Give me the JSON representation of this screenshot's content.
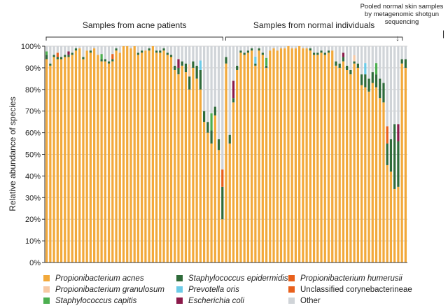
{
  "chart_data": {
    "type": "stacked-bar",
    "ylabel": "Relative abundance of species",
    "yticks": [
      "0%",
      "10%",
      "20%",
      "30%",
      "40%",
      "50%",
      "60%",
      "70%",
      "80%",
      "90%",
      "100%"
    ],
    "ylim": [
      0,
      100
    ],
    "groups": [
      {
        "label": "Samples from acne patients",
        "from": 0,
        "to": 48
      },
      {
        "label": "Samples from normal individuals",
        "from": 49,
        "to": 97
      }
    ],
    "pooled_note": "Pooled normal skin samples by metagenomic shotgun sequencing",
    "pooled_index": 98,
    "pooled_arrow": "↓",
    "extra_mark": "|",
    "species": [
      {
        "name": "Propionibacterium acnes",
        "color": "#f2a93b",
        "italic": true
      },
      {
        "name": "Staphylococcus epidermidis",
        "color": "#2f6b3a",
        "italic": true
      },
      {
        "name": "Propionibacterium humerusii",
        "color": "#e8601c",
        "italic": true
      },
      {
        "name": "Propionibacterium granulosum",
        "color": "#f7c9a4",
        "italic": true
      },
      {
        "name": "Prevotella oris",
        "color": "#6ccbe8",
        "italic": true
      },
      {
        "name": "Unclassified corynebacterineae",
        "color": "#e8601c",
        "italic": false
      },
      {
        "name": "Staphylococcus capitis",
        "color": "#4caf50",
        "italic": true
      },
      {
        "name": "Escherichia coli",
        "color": "#8b1a4a",
        "italic": true
      },
      {
        "name": "Other",
        "color": "#d0d4d8",
        "italic": false
      }
    ],
    "acnes_values": [
      94,
      91,
      95,
      94,
      94,
      95,
      95,
      96,
      98,
      99,
      94,
      98,
      97,
      99,
      96,
      93,
      93,
      92,
      93,
      98,
      97,
      100,
      100,
      99,
      100,
      96,
      97,
      98,
      98,
      100,
      97,
      97,
      98,
      96,
      95,
      89,
      87,
      91,
      88,
      80,
      90,
      85,
      80,
      65,
      60,
      55,
      68,
      52,
      20,
      92,
      55,
      74,
      89,
      97,
      96,
      97,
      98,
      91,
      98,
      96,
      90,
      98,
      99,
      98,
      99,
      99,
      100,
      99,
      99,
      100,
      99,
      99,
      98,
      96,
      96,
      97,
      96,
      97,
      98,
      91,
      90,
      93,
      89,
      87,
      92,
      90,
      82,
      81,
      79,
      83,
      81,
      76,
      74,
      45,
      42,
      34,
      35,
      92,
      90
    ],
    "epi_values": [
      2,
      1,
      1,
      1,
      1,
      1,
      1,
      1,
      1,
      0,
      1,
      0,
      1,
      0,
      0,
      1,
      1,
      1,
      1,
      1,
      0,
      0,
      0,
      0,
      0,
      1,
      1,
      0,
      1,
      0,
      1,
      1,
      1,
      1,
      1,
      2,
      3,
      2,
      4,
      6,
      3,
      6,
      9,
      5,
      5,
      6,
      4,
      5,
      15,
      3,
      4,
      2,
      2,
      1,
      1,
      1,
      1,
      1,
      1,
      1,
      1,
      0,
      0,
      0,
      0,
      0,
      0,
      0,
      0,
      0,
      0,
      0,
      1,
      1,
      1,
      1,
      1,
      1,
      0,
      2,
      2,
      2,
      2,
      2,
      1,
      2,
      5,
      6,
      6,
      5,
      6,
      9,
      9,
      10,
      15,
      30,
      21,
      2,
      4
    ]
  }
}
